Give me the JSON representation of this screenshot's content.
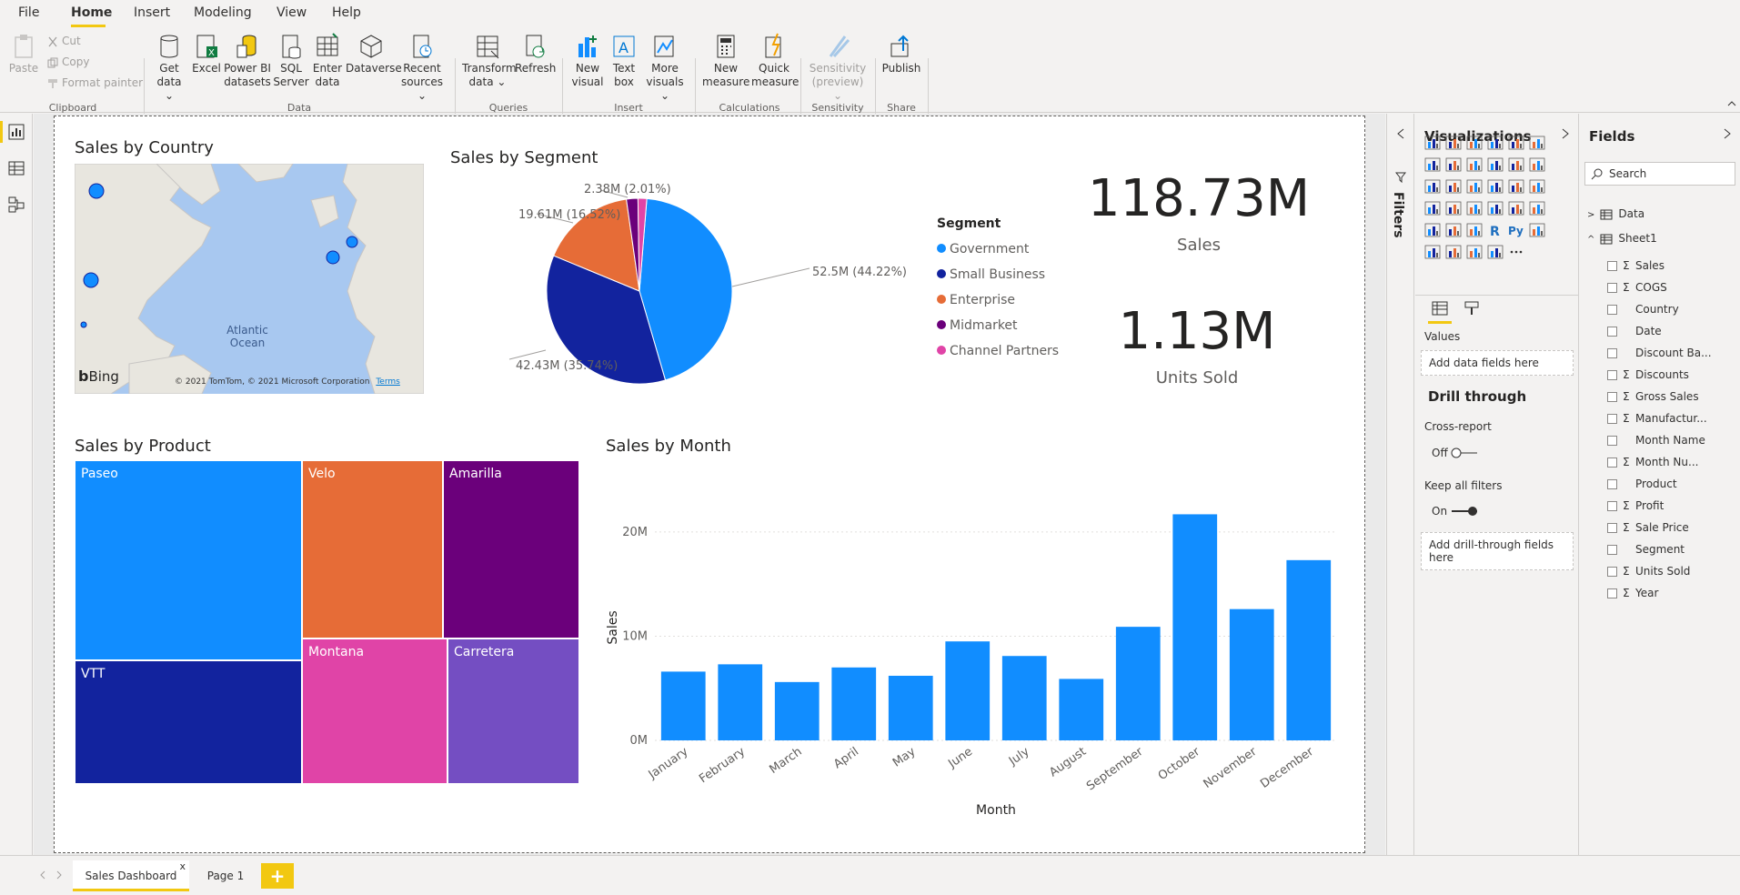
{
  "menu": {
    "items": [
      "File",
      "Home",
      "Insert",
      "Modeling",
      "View",
      "Help"
    ],
    "active": "Home"
  },
  "ribbon": {
    "clipboard": {
      "paste": "Paste",
      "cut": "Cut",
      "copy": "Copy",
      "format_painter": "Format painter",
      "label": "Clipboard"
    },
    "data": {
      "get_data": "Get data ⌄",
      "excel": "Excel",
      "power_bi": "Power BI datasets",
      "sql": "SQL Server",
      "enter": "Enter data",
      "dataverse": "Dataverse",
      "recent": "Recent sources ⌄",
      "label": "Data"
    },
    "queries": {
      "transform": "Transform data ⌄",
      "refresh": "Refresh",
      "label": "Queries"
    },
    "insert": {
      "new_visual": "New visual",
      "text_box": "Text box",
      "more": "More visuals ⌄",
      "label": "Insert"
    },
    "calculations": {
      "new_measure": "New measure",
      "quick_measure": "Quick measure",
      "label": "Calculations"
    },
    "sensitivity": {
      "btn": "Sensitivity (preview) ⌄",
      "label": "Sensitivity"
    },
    "share": {
      "publish": "Publish",
      "label": "Share"
    }
  },
  "visuals": {
    "map": {
      "title": "Sales by Country",
      "ocean": "Atlantic Ocean",
      "bing": "Bing",
      "copyright": "© 2021 TomTom, © 2021 Microsoft Corporation",
      "terms": "Terms"
    },
    "donut": {
      "title": "Sales by Segment",
      "legend_title": "Segment",
      "labels": [
        "52.5M (44.22%)",
        "42.43M (35.74%)",
        "19.61M (16.52%)",
        "2.38M (2.01%)"
      ]
    },
    "kpi_sales": {
      "value": "118.73M",
      "label": "Sales"
    },
    "kpi_units": {
      "value": "1.13M",
      "label": "Units Sold"
    },
    "treemap": {
      "title": "Sales by Product"
    },
    "bar": {
      "title": "Sales by Month"
    }
  },
  "chart_data": [
    {
      "type": "pie",
      "title": "Sales by Segment",
      "categories": [
        "Government",
        "Small Business",
        "Enterprise",
        "Midmarket",
        "Channel Partners"
      ],
      "values": [
        52.5,
        42.43,
        19.61,
        2.38,
        1.81
      ],
      "colors": [
        "#118dff",
        "#12239e",
        "#e66c37",
        "#6b007b",
        "#e044a7"
      ]
    },
    {
      "type": "table",
      "title": "Sales by Product",
      "categories": [
        "Paseo",
        "VTT",
        "Velo",
        "Amarilla",
        "Montana",
        "Carretera"
      ],
      "colors": [
        "#118dff",
        "#12239e",
        "#e66c37",
        "#6b007b",
        "#e044a7",
        "#744ec2"
      ]
    },
    {
      "type": "bar",
      "title": "Sales by Month",
      "categories": [
        "January",
        "February",
        "March",
        "April",
        "May",
        "June",
        "July",
        "August",
        "September",
        "October",
        "November",
        "December"
      ],
      "values": [
        6.6,
        7.3,
        5.6,
        7.0,
        6.2,
        9.5,
        8.1,
        5.9,
        10.9,
        21.7,
        12.6,
        17.3
      ],
      "xlabel": "Month",
      "ylabel": "Sales",
      "ylim": [
        0,
        22
      ],
      "yticks": [
        "0M",
        "10M",
        "20M"
      ],
      "color": "#118dff"
    }
  ],
  "filters": {
    "label": "Filters"
  },
  "viz_pane": {
    "title": "Visualizations",
    "values_label": "Values",
    "add_fields": "Add data fields here",
    "drill_title": "Drill through",
    "cross_report": "Cross-report",
    "off": "Off",
    "keep_filters": "Keep all filters",
    "on": "On",
    "add_drill": "Add drill-through fields here"
  },
  "fields_pane": {
    "title": "Fields",
    "search_placeholder": "Search",
    "tables": [
      "Data",
      "Sheet1"
    ],
    "fields": [
      {
        "name": "Sales",
        "sigma": true
      },
      {
        "name": "COGS",
        "sigma": true
      },
      {
        "name": "Country",
        "sigma": false
      },
      {
        "name": "Date",
        "sigma": false
      },
      {
        "name": "Discount Ba...",
        "sigma": false
      },
      {
        "name": "Discounts",
        "sigma": true
      },
      {
        "name": "Gross Sales",
        "sigma": true
      },
      {
        "name": "Manufactur...",
        "sigma": true
      },
      {
        "name": "Month Name",
        "sigma": false
      },
      {
        "name": "Month Nu...",
        "sigma": true
      },
      {
        "name": "Product",
        "sigma": false
      },
      {
        "name": "Profit",
        "sigma": true
      },
      {
        "name": "Sale Price",
        "sigma": true
      },
      {
        "name": "Segment",
        "sigma": false
      },
      {
        "name": "Units Sold",
        "sigma": true
      },
      {
        "name": "Year",
        "sigma": true
      }
    ]
  },
  "pages": {
    "tabs": [
      "Sales Dashboard",
      "Page 1"
    ],
    "close": "x",
    "add": "+"
  }
}
